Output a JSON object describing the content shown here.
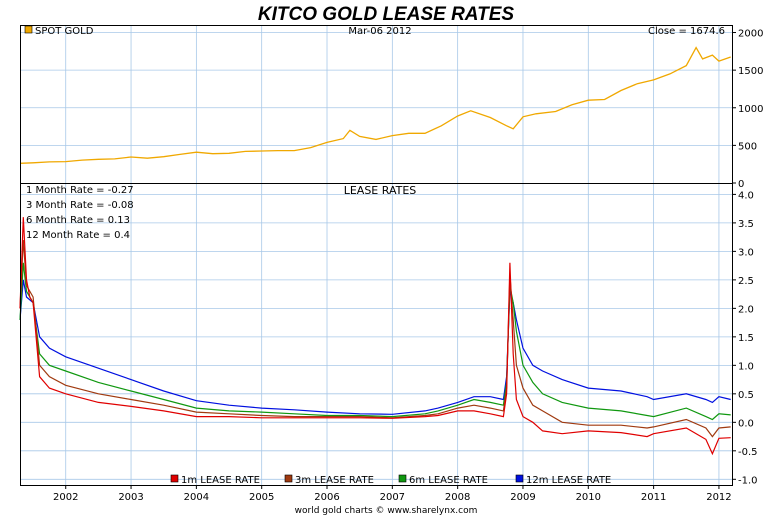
{
  "title": "KITCO GOLD LEASE RATES",
  "footer": "world gold charts © www.sharelynx.com",
  "colors": {
    "title": "#1a1adc",
    "gold": "#f0a800",
    "grid": "#a8c8e8",
    "r1m": "#e00000",
    "r3m": "#a03a10",
    "r6m": "#109810",
    "r12m": "#0010e0"
  },
  "top_panel": {
    "legend_label": "SPOT GOLD",
    "date_label": "Mar-06  2012",
    "close_label": "Close = 1674.6"
  },
  "bottom_panel": {
    "title": "LEASE RATES",
    "stats": [
      "1 Month Rate = -0.27",
      "3 Month Rate = -0.08",
      "6 Month Rate = 0.13",
      "12 Month Rate = 0.4"
    ]
  },
  "chart_data": [
    {
      "type": "line",
      "title": "",
      "xlim": [
        2001.3,
        2012.2
      ],
      "ylim": [
        0,
        2100
      ],
      "yticks": [
        0,
        500,
        1000,
        1500,
        2000
      ],
      "grid": true,
      "legend_position": "top-left",
      "series": [
        {
          "name": "SPOT GOLD",
          "x": [
            2001.3,
            2001.5,
            2001.75,
            2002.0,
            2002.25,
            2002.5,
            2002.75,
            2003.0,
            2003.25,
            2003.5,
            2003.75,
            2004.0,
            2004.25,
            2004.5,
            2004.75,
            2005.0,
            2005.25,
            2005.5,
            2005.75,
            2006.0,
            2006.25,
            2006.35,
            2006.5,
            2006.75,
            2007.0,
            2007.25,
            2007.5,
            2007.75,
            2008.0,
            2008.2,
            2008.5,
            2008.75,
            2008.85,
            2009.0,
            2009.2,
            2009.5,
            2009.75,
            2010.0,
            2010.25,
            2010.5,
            2010.75,
            2011.0,
            2011.25,
            2011.5,
            2011.65,
            2011.75,
            2011.9,
            2012.0,
            2012.18
          ],
          "y": [
            262,
            268,
            280,
            285,
            305,
            315,
            320,
            345,
            330,
            350,
            380,
            410,
            390,
            395,
            420,
            425,
            430,
            430,
            470,
            540,
            590,
            700,
            620,
            580,
            630,
            660,
            660,
            760,
            890,
            960,
            870,
            760,
            720,
            880,
            920,
            950,
            1040,
            1100,
            1110,
            1230,
            1320,
            1370,
            1450,
            1560,
            1800,
            1650,
            1700,
            1620,
            1674.6
          ]
        }
      ]
    },
    {
      "type": "line",
      "title": "LEASE RATES",
      "xlim": [
        2001.3,
        2012.2
      ],
      "ylim": [
        -1.1,
        4.2
      ],
      "yticks": [
        -1.0,
        -0.5,
        0.0,
        0.5,
        1.0,
        1.5,
        2.0,
        2.5,
        3.0,
        3.5,
        4.0
      ],
      "xticks": [
        "2002",
        "2003",
        "2004",
        "2005",
        "2006",
        "2007",
        "2008",
        "2009",
        "2010",
        "2011",
        "2012"
      ],
      "grid": true,
      "legend_position": "bottom-center",
      "series": [
        {
          "name": "1m LEASE RATE",
          "x": [
            2001.3,
            2001.35,
            2001.4,
            2001.45,
            2001.5,
            2001.6,
            2001.75,
            2002.0,
            2002.5,
            2003.0,
            2003.5,
            2004.0,
            2004.5,
            2005.0,
            2005.5,
            2006.0,
            2006.5,
            2007.0,
            2007.5,
            2007.7,
            2008.0,
            2008.25,
            2008.5,
            2008.7,
            2008.75,
            2008.8,
            2008.85,
            2008.9,
            2009.0,
            2009.15,
            2009.3,
            2009.6,
            2010.0,
            2010.5,
            2010.9,
            2011.0,
            2011.5,
            2011.8,
            2011.9,
            2012.0,
            2012.18
          ],
          "y": [
            2.0,
            3.6,
            2.5,
            2.2,
            2.1,
            0.8,
            0.6,
            0.5,
            0.35,
            0.28,
            0.2,
            0.1,
            0.1,
            0.08,
            0.08,
            0.08,
            0.08,
            0.07,
            0.1,
            0.12,
            0.2,
            0.2,
            0.15,
            0.1,
            0.5,
            2.8,
            1.2,
            0.4,
            0.1,
            0.0,
            -0.15,
            -0.2,
            -0.15,
            -0.18,
            -0.25,
            -0.2,
            -0.1,
            -0.3,
            -0.55,
            -0.28,
            -0.27
          ]
        },
        {
          "name": "3m LEASE RATE",
          "x": [
            2001.3,
            2001.35,
            2001.4,
            2001.5,
            2001.6,
            2001.75,
            2002.0,
            2002.5,
            2003.0,
            2003.5,
            2004.0,
            2004.5,
            2005.0,
            2005.5,
            2006.0,
            2006.5,
            2007.0,
            2007.5,
            2007.7,
            2008.0,
            2008.25,
            2008.5,
            2008.7,
            2008.75,
            2008.8,
            2008.85,
            2008.9,
            2009.0,
            2009.15,
            2009.3,
            2009.6,
            2010.0,
            2010.5,
            2010.9,
            2011.0,
            2011.5,
            2011.8,
            2011.9,
            2012.0,
            2012.18
          ],
          "y": [
            2.0,
            3.2,
            2.4,
            2.2,
            1.0,
            0.8,
            0.65,
            0.5,
            0.4,
            0.3,
            0.18,
            0.15,
            0.12,
            0.1,
            0.1,
            0.1,
            0.08,
            0.12,
            0.15,
            0.25,
            0.3,
            0.25,
            0.2,
            0.6,
            2.6,
            1.8,
            1.0,
            0.6,
            0.3,
            0.2,
            0.0,
            -0.05,
            -0.05,
            -0.1,
            -0.08,
            0.05,
            -0.1,
            -0.25,
            -0.1,
            -0.08
          ]
        },
        {
          "name": "6m LEASE RATE",
          "x": [
            2001.3,
            2001.35,
            2001.4,
            2001.5,
            2001.6,
            2001.75,
            2002.0,
            2002.5,
            2003.0,
            2003.5,
            2004.0,
            2004.5,
            2005.0,
            2005.5,
            2006.0,
            2006.5,
            2007.0,
            2007.5,
            2007.7,
            2008.0,
            2008.25,
            2008.5,
            2008.7,
            2008.75,
            2008.8,
            2008.85,
            2008.9,
            2009.0,
            2009.15,
            2009.3,
            2009.6,
            2010.0,
            2010.5,
            2010.9,
            2011.0,
            2011.5,
            2011.8,
            2011.9,
            2012.0,
            2012.18
          ],
          "y": [
            1.8,
            2.8,
            2.3,
            2.1,
            1.2,
            1.0,
            0.9,
            0.7,
            0.55,
            0.4,
            0.25,
            0.2,
            0.18,
            0.15,
            0.12,
            0.12,
            0.1,
            0.15,
            0.2,
            0.3,
            0.4,
            0.35,
            0.3,
            0.7,
            2.4,
            2.1,
            1.6,
            1.0,
            0.7,
            0.5,
            0.35,
            0.25,
            0.2,
            0.12,
            0.1,
            0.25,
            0.1,
            0.05,
            0.15,
            0.13
          ]
        },
        {
          "name": "12m LEASE RATE",
          "x": [
            2001.3,
            2001.35,
            2001.4,
            2001.5,
            2001.6,
            2001.75,
            2002.0,
            2002.5,
            2003.0,
            2003.5,
            2004.0,
            2004.5,
            2005.0,
            2005.5,
            2006.0,
            2006.5,
            2007.0,
            2007.5,
            2007.7,
            2008.0,
            2008.25,
            2008.5,
            2008.7,
            2008.75,
            2008.8,
            2008.85,
            2008.9,
            2009.0,
            2009.15,
            2009.3,
            2009.6,
            2010.0,
            2010.5,
            2010.9,
            2011.0,
            2011.5,
            2011.8,
            2011.9,
            2012.0,
            2012.18
          ],
          "y": [
            1.8,
            2.5,
            2.2,
            2.1,
            1.5,
            1.3,
            1.15,
            0.95,
            0.75,
            0.55,
            0.38,
            0.3,
            0.25,
            0.22,
            0.18,
            0.15,
            0.14,
            0.2,
            0.25,
            0.35,
            0.45,
            0.45,
            0.4,
            0.8,
            2.3,
            2.1,
            1.8,
            1.3,
            1.0,
            0.9,
            0.75,
            0.6,
            0.55,
            0.45,
            0.4,
            0.5,
            0.4,
            0.35,
            0.45,
            0.4
          ]
        }
      ]
    }
  ]
}
